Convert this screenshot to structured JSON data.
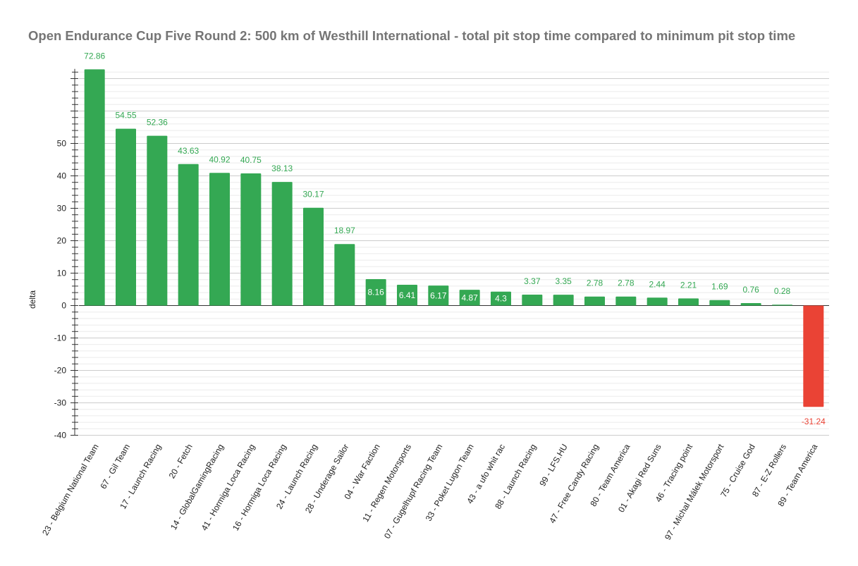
{
  "chart_data": {
    "type": "bar",
    "title": "Open Endurance Cup Five Round 2: 500 km of Westhill International - total pit stop time compared to minimum pit stop time",
    "xlabel": "",
    "ylabel": "delta",
    "ylim": [
      -40,
      73
    ],
    "yticks": [
      -40,
      -30,
      -20,
      -10,
      0,
      10,
      20,
      30,
      40,
      50
    ],
    "grid": true,
    "legend": "none",
    "colors": {
      "positive": "#34a853",
      "negative": "#ea4335",
      "inside_label": "#ffffff"
    },
    "categories": [
      "23 - Belgium National Team",
      "67 - Gil Team",
      "17 - Launch Racing",
      "20 - Fetch",
      "14 - GlobalGamingRacing",
      "41 - Hormiga Loca Racing",
      "16 - Hormiga Loca Racing",
      "24 - Launch Racing",
      "28 - Underage Sailor",
      "04 - War Faction",
      "11 - Regen Motorsports",
      "07 - Gugelhupf Racing Team",
      "33 - Poket Lugon Team",
      "43 - a ufo whit rac",
      "88 - Launch Racing",
      "99 - LFS.HU",
      "47 - Free Candy Racing",
      "80 - Team America",
      "01 - Akagi Red Suns",
      "46 - Tracing point",
      "97 - Michal Málek Motorsport",
      "75 - Cruise God",
      "87 - E-Z Rollers",
      "89 - Team America"
    ],
    "values": [
      72.86,
      54.55,
      52.36,
      43.63,
      40.92,
      40.75,
      38.13,
      30.17,
      18.97,
      8.16,
      6.41,
      6.17,
      4.87,
      4.3,
      3.37,
      3.35,
      2.78,
      2.78,
      2.44,
      2.21,
      1.69,
      0.76,
      0.28,
      -31.24
    ],
    "value_labels": [
      "72.86",
      "54.55",
      "52.36",
      "43.63",
      "40.92",
      "40.75",
      "38.13",
      "30.17",
      "18.97",
      "8.16",
      "6.41",
      "6.17",
      "4.87",
      "4.3",
      "3.37",
      "3.35",
      "2.78",
      "2.78",
      "2.44",
      "2.21",
      "1.69",
      "0.76",
      "0.28",
      "-31.24"
    ],
    "labels_inside": [
      false,
      false,
      false,
      false,
      false,
      false,
      false,
      false,
      false,
      true,
      true,
      true,
      true,
      true,
      false,
      false,
      false,
      false,
      false,
      false,
      false,
      false,
      false,
      false
    ]
  }
}
